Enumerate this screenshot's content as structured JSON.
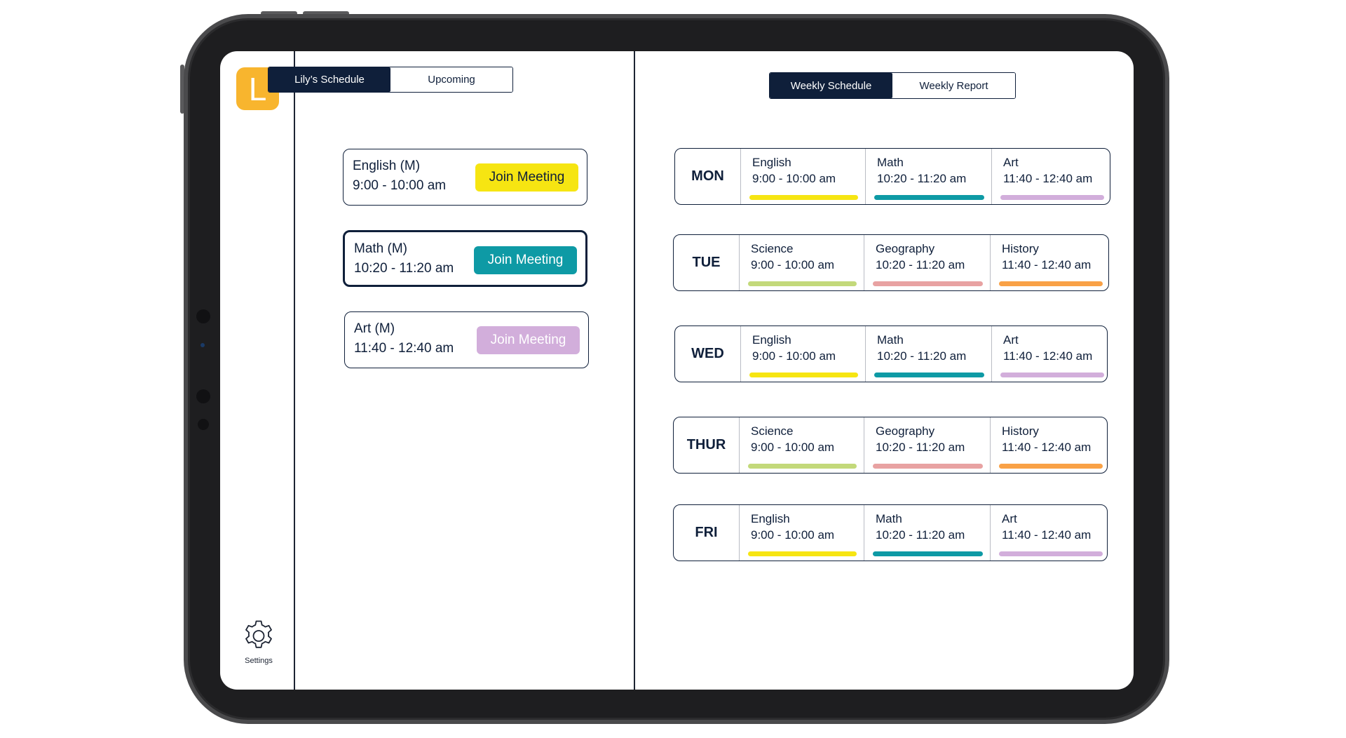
{
  "colors": {
    "navy": "#0f1f3a",
    "english": "#f6e512",
    "math": "#0e9aa5",
    "art": "#d2aedb",
    "science": "#c3d97a",
    "geography": "#e8a2a2",
    "history": "#f9a146",
    "avatar": "#f8b52e"
  },
  "sidebar": {
    "avatar_letter": "L",
    "settings_icon": "gear-icon",
    "settings_label": "Settings"
  },
  "left_tabs": {
    "schedule": "Lily’s Schedule",
    "upcoming": "Upcoming",
    "active": "schedule"
  },
  "right_tabs": {
    "weekly_schedule": "Weekly Schedule",
    "weekly_report": "Weekly Report",
    "active": "weekly_schedule"
  },
  "meetings": [
    {
      "subject": "English (M)",
      "time": "9:00 - 10:00 am",
      "button": "Join Meeting",
      "color": "#f6e512",
      "text_color": "#0f1f3a",
      "selected": false
    },
    {
      "subject": "Math (M)",
      "time": "10:20 - 11:20 am",
      "button": "Join Meeting",
      "color": "#0e9aa5",
      "text_color": "#ffffff",
      "selected": true
    },
    {
      "subject": "Art (M)",
      "time": "11:40 - 12:40 am",
      "button": "Join Meeting",
      "color": "#d2aedb",
      "text_color": "#ffffff",
      "selected": false
    }
  ],
  "week": [
    {
      "day": "MON",
      "classes": [
        {
          "name": "English",
          "time": "9:00 - 10:00 am",
          "color": "#f6e512"
        },
        {
          "name": "Math",
          "time": "10:20 - 11:20 am",
          "color": "#0e9aa5"
        },
        {
          "name": "Art",
          "time": "11:40 - 12:40 am",
          "color": "#d2aedb"
        }
      ]
    },
    {
      "day": "TUE",
      "classes": [
        {
          "name": "Science",
          "time": "9:00 - 10:00 am",
          "color": "#c3d97a"
        },
        {
          "name": "Geography",
          "time": "10:20 - 11:20 am",
          "color": "#e8a2a2"
        },
        {
          "name": "History",
          "time": "11:40 - 12:40 am",
          "color": "#f9a146"
        }
      ]
    },
    {
      "day": "WED",
      "classes": [
        {
          "name": "English",
          "time": "9:00 - 10:00 am",
          "color": "#f6e512"
        },
        {
          "name": "Math",
          "time": "10:20 - 11:20 am",
          "color": "#0e9aa5"
        },
        {
          "name": "Art",
          "time": "11:40 - 12:40 am",
          "color": "#d2aedb"
        }
      ]
    },
    {
      "day": "THUR",
      "classes": [
        {
          "name": "Science",
          "time": "9:00 - 10:00 am",
          "color": "#c3d97a"
        },
        {
          "name": "Geography",
          "time": "10:20 - 11:20 am",
          "color": "#e8a2a2"
        },
        {
          "name": "History",
          "time": "11:40 - 12:40 am",
          "color": "#f9a146"
        }
      ]
    },
    {
      "day": "FRI",
      "classes": [
        {
          "name": "English",
          "time": "9:00 - 10:00 am",
          "color": "#f6e512"
        },
        {
          "name": "Math",
          "time": "10:20 - 11:20 am",
          "color": "#0e9aa5"
        },
        {
          "name": "Art",
          "time": "11:40 - 12:40 am",
          "color": "#d2aedb"
        }
      ]
    }
  ]
}
